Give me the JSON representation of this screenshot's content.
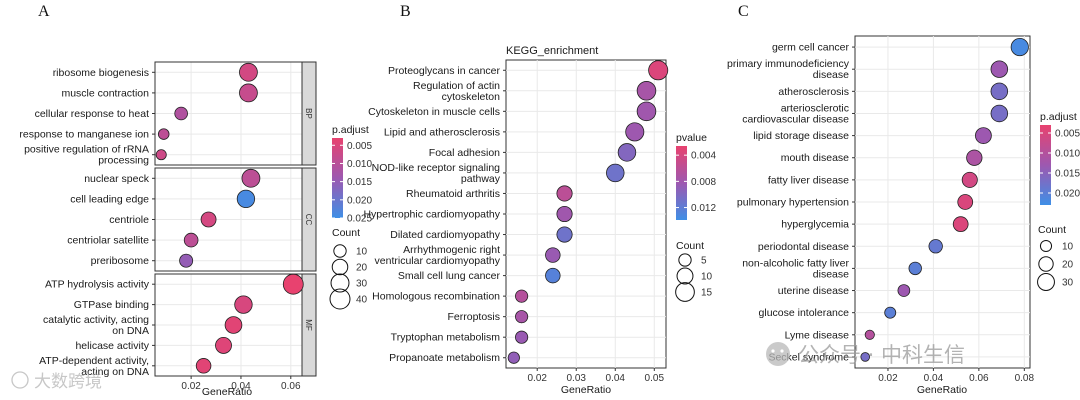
{
  "chart_data": [
    {
      "panel": "A",
      "type": "scatter",
      "subtype": "faceted-dotplot",
      "xlabel": "GeneRatio",
      "xlim": [
        0.0055,
        0.0645
      ],
      "xticks": [
        0.02,
        0.04,
        0.06
      ],
      "tick_labels": [
        "0.02",
        "0.04",
        "0.06"
      ],
      "facets": [
        {
          "name": "BP",
          "items": [
            {
              "term": [
                "ribosome biogenesis"
              ],
              "x": 0.043,
              "count": 30,
              "padj": 0.0062
            },
            {
              "term": [
                "muscle contraction"
              ],
              "x": 0.043,
              "count": 30,
              "padj": 0.008
            },
            {
              "term": [
                "cellular response to heat"
              ],
              "x": 0.016,
              "count": 11,
              "padj": 0.0112
            },
            {
              "term": [
                "response to manganese ion"
              ],
              "x": 0.009,
              "count": 6,
              "padj": 0.0095
            },
            {
              "term": [
                "positive regulation of rRNA",
                "processing"
              ],
              "x": 0.008,
              "count": 5,
              "padj": 0.007
            }
          ]
        },
        {
          "name": "CC",
          "items": [
            {
              "term": [
                "nuclear speck"
              ],
              "x": 0.044,
              "count": 30,
              "padj": 0.0095
            },
            {
              "term": [
                "cell leading edge"
              ],
              "x": 0.042,
              "count": 28,
              "padj": 0.024
            },
            {
              "term": [
                "centriole"
              ],
              "x": 0.027,
              "count": 18,
              "padj": 0.006
            },
            {
              "term": [
                "centriolar satellite"
              ],
              "x": 0.02,
              "count": 14,
              "padj": 0.0095
            },
            {
              "term": [
                "preribosome"
              ],
              "x": 0.018,
              "count": 12,
              "padj": 0.015
            }
          ]
        },
        {
          "name": "MF",
          "items": [
            {
              "term": [
                "ATP hydrolysis activity"
              ],
              "x": 0.061,
              "count": 40,
              "padj": 0.003
            },
            {
              "term": [
                "GTPase binding"
              ],
              "x": 0.041,
              "count": 28,
              "padj": 0.0055
            },
            {
              "term": [
                "catalytic activity, acting",
                "on DNA"
              ],
              "x": 0.037,
              "count": 25,
              "padj": 0.004
            },
            {
              "term": [
                "helicase activity"
              ],
              "x": 0.033,
              "count": 22,
              "padj": 0.0045
            },
            {
              "term": [
                "ATP-dependent activity,",
                "acting on DNA"
              ],
              "x": 0.025,
              "count": 17,
              "padj": 0.004
            }
          ]
        }
      ],
      "color_legend": {
        "title": "p.adjust",
        "min": 0.003,
        "max": 0.025,
        "labels": [
          "0.005",
          "0.010",
          "0.015",
          "0.020",
          "0.025"
        ],
        "values": [
          0.005,
          0.01,
          0.015,
          0.02,
          0.025
        ]
      },
      "size_legend": {
        "title": "Count",
        "labels": [
          "10",
          "20",
          "30",
          "40"
        ],
        "values": [
          10,
          20,
          30,
          40
        ]
      }
    },
    {
      "panel": "B",
      "type": "scatter",
      "subtype": "dotplot",
      "title": "KEGG_enrichment",
      "xlabel": "GeneRatio",
      "xlim": [
        0.012,
        0.053
      ],
      "xticks": [
        0.02,
        0.03,
        0.04,
        0.05
      ],
      "tick_labels": [
        "0.02",
        "0.03",
        "0.04",
        "0.05"
      ],
      "items": [
        {
          "term": [
            "Proteoglycans in cancer"
          ],
          "x": 0.051,
          "count": 16,
          "pvalue": 0.0036
        },
        {
          "term": [
            "Regulation of actin",
            "cytoskeleton"
          ],
          "x": 0.048,
          "count": 15,
          "pvalue": 0.0075
        },
        {
          "term": [
            "Cytoskeleton in muscle cells"
          ],
          "x": 0.048,
          "count": 15,
          "pvalue": 0.008
        },
        {
          "term": [
            "Lipid and atherosclerosis"
          ],
          "x": 0.045,
          "count": 14,
          "pvalue": 0.0082
        },
        {
          "term": [
            "Focal adhesion"
          ],
          "x": 0.043,
          "count": 13,
          "pvalue": 0.0098
        },
        {
          "term": [
            "NOD-like receptor signaling",
            "pathway"
          ],
          "x": 0.04,
          "count": 13,
          "pvalue": 0.011
        },
        {
          "term": [
            "Rheumatoid arthritis"
          ],
          "x": 0.027,
          "count": 9,
          "pvalue": 0.006
        },
        {
          "term": [
            "Hypertrophic cardiomyopathy"
          ],
          "x": 0.027,
          "count": 9,
          "pvalue": 0.008
        },
        {
          "term": [
            "Dilated cardiomyopathy"
          ],
          "x": 0.027,
          "count": 9,
          "pvalue": 0.011
        },
        {
          "term": [
            "Arrhythmogenic right",
            "ventricular cardiomyopathy"
          ],
          "x": 0.024,
          "count": 8,
          "pvalue": 0.0085
        },
        {
          "term": [
            "Small cell lung cancer"
          ],
          "x": 0.024,
          "count": 8,
          "pvalue": 0.0125
        },
        {
          "term": [
            "Homologous recombination"
          ],
          "x": 0.016,
          "count": 5,
          "pvalue": 0.0065
        },
        {
          "term": [
            "Ferroptosis"
          ],
          "x": 0.016,
          "count": 5,
          "pvalue": 0.0075
        },
        {
          "term": [
            "Tryptophan metabolism"
          ],
          "x": 0.016,
          "count": 5,
          "pvalue": 0.0085
        },
        {
          "term": [
            "Propanoate metabolism"
          ],
          "x": 0.014,
          "count": 4,
          "pvalue": 0.009
        }
      ],
      "color_legend": {
        "title": "pvalue",
        "min": 0.0026,
        "max": 0.0139,
        "labels": [
          "0.004",
          "0.008",
          "0.012"
        ],
        "values": [
          0.004,
          0.008,
          0.012
        ]
      },
      "size_legend": {
        "title": "Count",
        "labels": [
          "5",
          "10",
          "15"
        ],
        "values": [
          5,
          10,
          15
        ]
      }
    },
    {
      "panel": "C",
      "type": "scatter",
      "subtype": "dotplot",
      "xlabel": "GeneRatio",
      "xlim": [
        0.0055,
        0.0825
      ],
      "xticks": [
        0.02,
        0.04,
        0.06,
        0.08
      ],
      "tick_labels": [
        "0.02",
        "0.04",
        "0.06",
        "0.08"
      ],
      "items": [
        {
          "term": [
            "germ cell cancer"
          ],
          "x": 0.078,
          "count": 32,
          "padj": 0.022
        },
        {
          "term": [
            "primary immunodeficiency",
            "disease"
          ],
          "x": 0.069,
          "count": 29,
          "padj": 0.013
        },
        {
          "term": [
            "atherosclerosis"
          ],
          "x": 0.069,
          "count": 29,
          "padj": 0.017
        },
        {
          "term": [
            "arteriosclerotic",
            "cardiovascular disease"
          ],
          "x": 0.069,
          "count": 29,
          "padj": 0.017
        },
        {
          "term": [
            "lipid storage disease"
          ],
          "x": 0.062,
          "count": 26,
          "padj": 0.013
        },
        {
          "term": [
            "mouth disease"
          ],
          "x": 0.058,
          "count": 24,
          "padj": 0.011
        },
        {
          "term": [
            "fatty liver disease"
          ],
          "x": 0.056,
          "count": 23,
          "padj": 0.006
        },
        {
          "term": [
            "pulmonary hypertension"
          ],
          "x": 0.054,
          "count": 22,
          "padj": 0.005
        },
        {
          "term": [
            "hyperglycemia"
          ],
          "x": 0.052,
          "count": 22,
          "padj": 0.0048
        },
        {
          "term": [
            "periodontal disease"
          ],
          "x": 0.041,
          "count": 17,
          "padj": 0.019
        },
        {
          "term": [
            "non-alcoholic fatty liver",
            "disease"
          ],
          "x": 0.032,
          "count": 14,
          "padj": 0.02
        },
        {
          "term": [
            "uterine disease"
          ],
          "x": 0.027,
          "count": 12,
          "padj": 0.013
        },
        {
          "term": [
            "glucose intolerance"
          ],
          "x": 0.021,
          "count": 10,
          "padj": 0.02
        },
        {
          "term": [
            "Lyme disease"
          ],
          "x": 0.012,
          "count": 6,
          "padj": 0.01
        },
        {
          "term": [
            "Seckel syndrome"
          ],
          "x": 0.01,
          "count": 5,
          "padj": 0.017
        }
      ],
      "color_legend": {
        "title": "p.adjust",
        "min": 0.003,
        "max": 0.023,
        "labels": [
          "0.005",
          "0.010",
          "0.015",
          "0.020"
        ],
        "values": [
          0.005,
          0.01,
          0.015,
          0.02
        ]
      },
      "size_legend": {
        "title": "Count",
        "labels": [
          "10",
          "20",
          "30"
        ],
        "values": [
          10,
          20,
          30
        ]
      }
    }
  ],
  "watermarks": {
    "left": "大数跨境",
    "right": "公众号 · 中科生信"
  },
  "colors": {
    "low_value": "#e8426f",
    "high_value": "#3f8fe6",
    "panel_bg": "#ffffff",
    "grid": "#e9e9e9",
    "strip": "#d9d9d9"
  }
}
